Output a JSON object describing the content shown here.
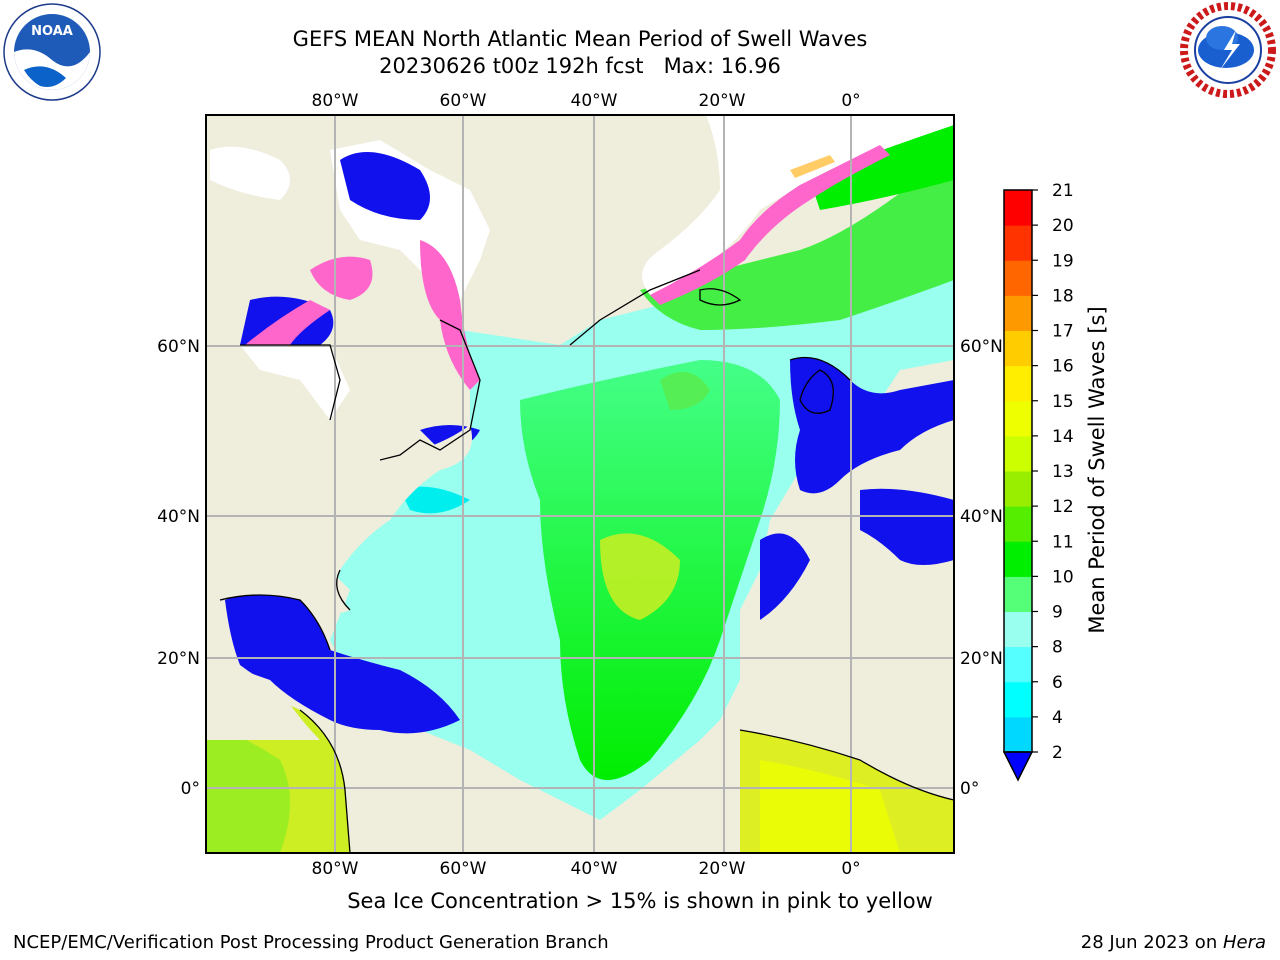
{
  "title": {
    "line1": "GEFS MEAN North Atlantic Mean Period of Swell Waves",
    "line2": "20230626 t00z 192h fcst   Max: 16.96"
  },
  "logos": {
    "left": "NOAA",
    "left_ring": "NATIONAL OCEANIC AND ATMOSPHERIC ADMINISTRATION · U.S. DEPARTMENT OF COMMERCE",
    "right_ring": "NATIONAL WEATHER SERVICE"
  },
  "map": {
    "lon_labels": [
      "80°W",
      "60°W",
      "40°W",
      "20°W",
      "0°"
    ],
    "lat_labels": [
      "60°N",
      "40°N",
      "20°N",
      "0°"
    ],
    "grid": true,
    "land_color": "#efeddc",
    "ice_colors": [
      "#ff55cc",
      "#ff99aa",
      "#ffcc66"
    ]
  },
  "colorbar": {
    "title": "Mean Period of Swell Waves [s]",
    "ticks": [
      "2",
      "4",
      "6",
      "8",
      "9",
      "10",
      "11",
      "12",
      "13",
      "14",
      "15",
      "16",
      "17",
      "18",
      "19",
      "20",
      "21"
    ],
    "colors": [
      "#0055ff",
      "#00d8ff",
      "#00ffff",
      "#55ffff",
      "#99ffee",
      "#55ff77",
      "#00ee00",
      "#55ee00",
      "#99ee00",
      "#ccff00",
      "#eeff00",
      "#ffee00",
      "#ffcc00",
      "#ff9900",
      "#ff6600",
      "#ff3300",
      "#ff0000"
    ],
    "under_color": "#0000ff"
  },
  "footer": {
    "note": "Sea Ice Concentration > 15% is shown in pink to yellow",
    "credit_left": "NCEP/EMC/Verification Post Processing Product Generation Branch",
    "credit_date": "28 Jun 2023 on ",
    "credit_host": "Hera"
  }
}
